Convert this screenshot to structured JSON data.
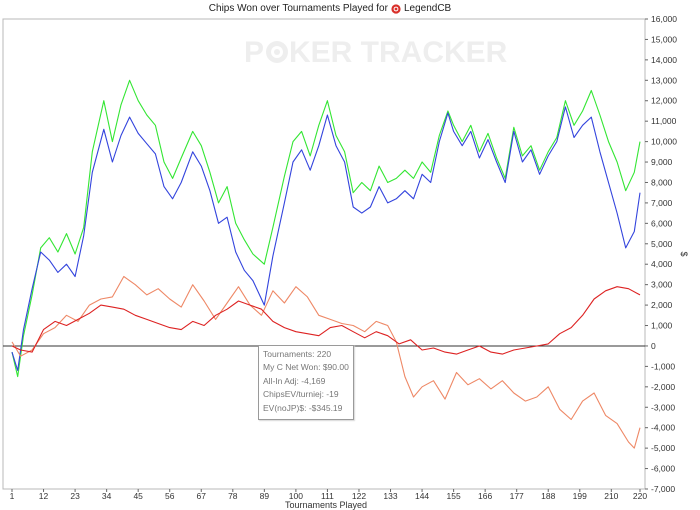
{
  "title": {
    "prefix": "Chips Won over Tournaments Played for",
    "player": "LegendCB"
  },
  "watermark": {
    "left": "P",
    "right": "KER TRACKER"
  },
  "tooltip": {
    "tournaments": "Tournaments: 220",
    "net_won": "My C Net Won: $90.00",
    "allin_adj": "All-In Adj: -4,169",
    "chips_ev": "ChipsEV/turniej: -19",
    "ev_nojp": "EV(noJP)$: -$345.19"
  },
  "chart_data": {
    "type": "line",
    "xlabel": "Tournaments Played",
    "ylabel": "$",
    "xlim": [
      1,
      220
    ],
    "ylim": [
      -7000,
      16000
    ],
    "x_ticks": [
      1,
      12,
      23,
      34,
      45,
      56,
      67,
      78,
      89,
      100,
      111,
      122,
      133,
      144,
      155,
      166,
      177,
      188,
      199,
      210,
      220
    ],
    "y_ticks": [
      -7000,
      -6000,
      -5000,
      -4000,
      -3000,
      -2000,
      -1000,
      0,
      1000,
      2000,
      3000,
      4000,
      5000,
      6000,
      7000,
      8000,
      9000,
      10000,
      11000,
      12000,
      13000,
      14000,
      15000,
      16000
    ],
    "y_tick_labels": [
      "-7,000",
      "-6,000",
      "-5,000",
      "-4,000",
      "-3,000",
      "-2,000",
      "-1,000",
      "0",
      "1,000",
      "2,000",
      "3,000",
      "4,000",
      "5,000",
      "6,000",
      "7,000",
      "8,000",
      "9,000",
      "10,000",
      "11,000",
      "12,000",
      "13,000",
      "14,000",
      "15,000",
      "16,000"
    ],
    "zero_line": true,
    "series": [
      {
        "color": "#33e633",
        "x": [
          1,
          3,
          5,
          8,
          11,
          14,
          17,
          20,
          23,
          26,
          29,
          33,
          36,
          39,
          42,
          45,
          48,
          51,
          54,
          57,
          60,
          64,
          67,
          70,
          73,
          76,
          79,
          82,
          85,
          89,
          92,
          96,
          99,
          102,
          105,
          108,
          111,
          114,
          117,
          120,
          123,
          126,
          129,
          132,
          135,
          138,
          141,
          144,
          147,
          150,
          153,
          155,
          158,
          161,
          164,
          167,
          170,
          173,
          176,
          179,
          182,
          185,
          188,
          191,
          194,
          197,
          200,
          203,
          206,
          209,
          212,
          215,
          218,
          220
        ],
        "y": [
          -300,
          -1500,
          500,
          2500,
          4800,
          5300,
          4600,
          5500,
          4500,
          5800,
          9500,
          12000,
          10000,
          11800,
          13000,
          12000,
          11300,
          10800,
          9000,
          8200,
          9200,
          10500,
          9800,
          8500,
          7000,
          7800,
          6000,
          5200,
          4500,
          4000,
          5800,
          8300,
          10000,
          10500,
          9300,
          10800,
          12000,
          10300,
          9500,
          7500,
          8000,
          7600,
          8800,
          8000,
          8200,
          8600,
          8200,
          9000,
          8500,
          10300,
          11500,
          10800,
          10000,
          10800,
          9500,
          10400,
          9200,
          8200,
          10700,
          9300,
          9800,
          8600,
          9500,
          10200,
          12000,
          10800,
          11500,
          12500,
          11300,
          10000,
          9000,
          7600,
          8500,
          10000
        ]
      },
      {
        "color": "#3344dd",
        "x": [
          1,
          3,
          5,
          8,
          11,
          14,
          17,
          20,
          23,
          26,
          29,
          33,
          36,
          39,
          42,
          45,
          48,
          51,
          54,
          57,
          60,
          64,
          67,
          70,
          73,
          76,
          79,
          82,
          85,
          89,
          92,
          96,
          99,
          102,
          105,
          108,
          111,
          114,
          117,
          120,
          123,
          126,
          129,
          132,
          135,
          138,
          141,
          144,
          147,
          150,
          153,
          155,
          158,
          161,
          164,
          167,
          170,
          173,
          176,
          179,
          182,
          185,
          188,
          191,
          194,
          197,
          200,
          203,
          206,
          209,
          212,
          215,
          218,
          220
        ],
        "y": [
          -300,
          -1200,
          800,
          2800,
          4600,
          4200,
          3600,
          4000,
          3400,
          5400,
          8500,
          10600,
          9000,
          10300,
          11200,
          10400,
          9900,
          9400,
          7800,
          7200,
          8000,
          9500,
          8800,
          7600,
          6000,
          6300,
          4600,
          3700,
          3200,
          2000,
          4400,
          7000,
          9000,
          9600,
          8600,
          9800,
          11300,
          9800,
          9000,
          6800,
          6500,
          6800,
          7800,
          7000,
          7200,
          7600,
          7200,
          8400,
          8000,
          10000,
          11400,
          10500,
          9800,
          10500,
          9200,
          10100,
          9000,
          8000,
          10500,
          9000,
          9600,
          8400,
          9300,
          10000,
          11700,
          10200,
          10800,
          11200,
          9500,
          8000,
          6500,
          4800,
          5600,
          7500
        ]
      },
      {
        "color": "#ee8866",
        "x": [
          1,
          4,
          8,
          12,
          16,
          20,
          24,
          28,
          32,
          36,
          40,
          44,
          48,
          52,
          56,
          60,
          64,
          68,
          72,
          76,
          80,
          84,
          88,
          92,
          96,
          100,
          104,
          108,
          112,
          116,
          120,
          124,
          128,
          132,
          135,
          138,
          141,
          144,
          148,
          152,
          156,
          160,
          164,
          168,
          172,
          176,
          180,
          184,
          188,
          192,
          196,
          200,
          204,
          208,
          212,
          216,
          218,
          220
        ],
        "y": [
          200,
          -500,
          -200,
          600,
          900,
          1500,
          1200,
          2000,
          2300,
          2400,
          3400,
          3000,
          2500,
          2800,
          2300,
          1900,
          3000,
          2200,
          1300,
          2100,
          2900,
          2000,
          1500,
          2700,
          2100,
          2900,
          2400,
          1500,
          1300,
          1100,
          1000,
          700,
          1200,
          1000,
          200,
          -1500,
          -2500,
          -2000,
          -1700,
          -2600,
          -1300,
          -1900,
          -1600,
          -2100,
          -1700,
          -2300,
          -2700,
          -2500,
          -2000,
          -3100,
          -3600,
          -2700,
          -2300,
          -3400,
          -3800,
          -4700,
          -5000,
          -4000
        ]
      },
      {
        "color": "#dd2222",
        "x": [
          1,
          4,
          8,
          12,
          16,
          20,
          24,
          28,
          32,
          36,
          40,
          44,
          48,
          52,
          56,
          60,
          64,
          68,
          72,
          76,
          80,
          84,
          88,
          92,
          96,
          100,
          104,
          108,
          112,
          116,
          120,
          124,
          128,
          132,
          136,
          140,
          144,
          148,
          152,
          156,
          160,
          164,
          168,
          172,
          176,
          180,
          184,
          188,
          192,
          196,
          200,
          204,
          208,
          212,
          216,
          220
        ],
        "y": [
          0,
          -200,
          -300,
          800,
          1200,
          1000,
          1300,
          1600,
          2000,
          1900,
          1800,
          1500,
          1300,
          1100,
          900,
          800,
          1200,
          1000,
          1500,
          1800,
          2200,
          2000,
          1800,
          1200,
          900,
          700,
          600,
          500,
          900,
          1000,
          700,
          400,
          700,
          500,
          100,
          300,
          -200,
          -100,
          -300,
          -400,
          -200,
          0,
          -300,
          -400,
          -200,
          -100,
          0,
          100,
          600,
          900,
          1500,
          2300,
          2700,
          2900,
          2800,
          2500
        ]
      }
    ]
  }
}
